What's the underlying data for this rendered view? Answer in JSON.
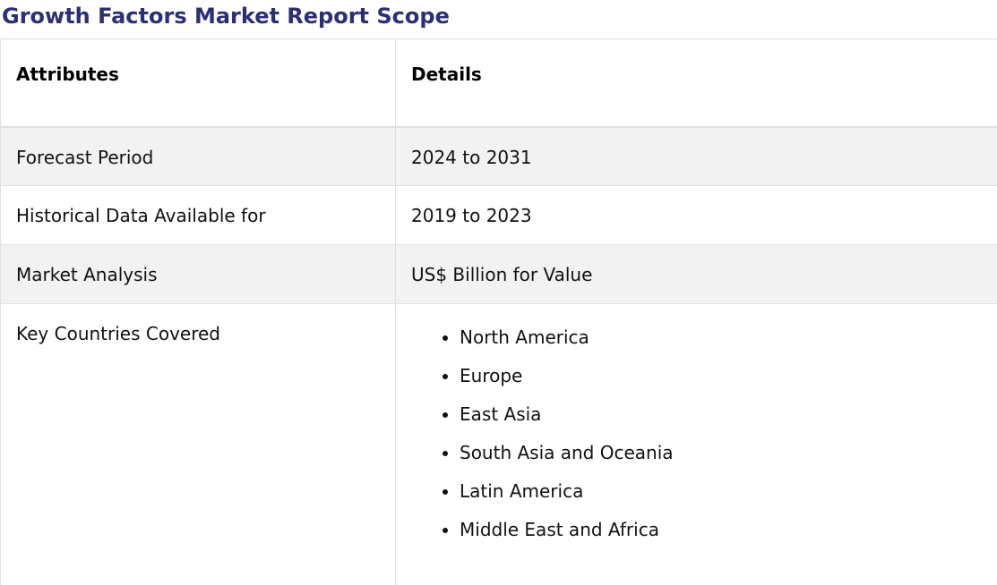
{
  "title": "Growth Factors Market Report Scope",
  "table": {
    "headers": {
      "attributes": "Attributes",
      "details": "Details"
    },
    "rows": [
      {
        "attribute": "Forecast Period",
        "detail": "2024 to 2031"
      },
      {
        "attribute": "Historical Data Available for",
        "detail": "2019 to 2023"
      },
      {
        "attribute": "Market Analysis",
        "detail": "US$ Billion for Value"
      }
    ],
    "countries": {
      "attribute": "Key Countries Covered",
      "items": [
        "North America",
        "Europe",
        "East Asia",
        "South Asia and Oceania",
        "Latin America",
        "Middle East and Africa"
      ]
    }
  },
  "colors": {
    "title": "#2b2f7a",
    "row_shade": "#f2f2f2",
    "border": "#e0e0e0"
  }
}
